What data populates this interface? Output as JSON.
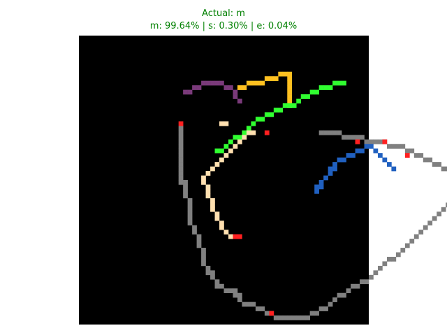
{
  "chart_data": {
    "type": "heatmap",
    "title": "Actual: m",
    "subtitle": "m: 99.64% | s: 0.30% | e: 0.04%",
    "actual_label": "m",
    "predictions": [
      {
        "label": "m",
        "percent": 99.64
      },
      {
        "label": "s",
        "percent": 0.3
      },
      {
        "label": "e",
        "percent": 0.04
      }
    ],
    "grid": {
      "rows": 64,
      "cols": 64,
      "background": "#000000"
    },
    "axes": "off",
    "colors": {
      "gray": "#808080",
      "purple": "#7a3a7a",
      "gold": "#ffc020",
      "green": "#30ff30",
      "blue": "#2060c0",
      "cream": "#ffe0b0",
      "red": "#ff2020",
      "white": "#ffffff",
      "title": "#008000"
    },
    "strokes": [
      {
        "color": "gray",
        "cells": [
          [
            22,
            20
          ],
          [
            22,
            21
          ],
          [
            22,
            22
          ],
          [
            22,
            23
          ],
          [
            22,
            24
          ],
          [
            22,
            25
          ],
          [
            22,
            26
          ],
          [
            22,
            27
          ],
          [
            22,
            28
          ],
          [
            22,
            29
          ],
          [
            22,
            30
          ],
          [
            22,
            31
          ],
          [
            22,
            32
          ],
          [
            23,
            32
          ],
          [
            23,
            33
          ],
          [
            23,
            34
          ],
          [
            23,
            35
          ],
          [
            24,
            36
          ],
          [
            24,
            37
          ],
          [
            24,
            38
          ],
          [
            24,
            39
          ],
          [
            24,
            40
          ],
          [
            24,
            41
          ],
          [
            25,
            42
          ],
          [
            25,
            43
          ],
          [
            26,
            44
          ],
          [
            26,
            45
          ],
          [
            26,
            46
          ],
          [
            27,
            47
          ],
          [
            27,
            48
          ],
          [
            27,
            49
          ],
          [
            27,
            50
          ],
          [
            28,
            51
          ],
          [
            28,
            52
          ],
          [
            29,
            52
          ],
          [
            29,
            53
          ],
          [
            30,
            54
          ],
          [
            30,
            55
          ],
          [
            31,
            55
          ],
          [
            32,
            56
          ],
          [
            33,
            56
          ],
          [
            34,
            56
          ],
          [
            34,
            57
          ],
          [
            35,
            57
          ],
          [
            35,
            58
          ],
          [
            36,
            59
          ],
          [
            37,
            59
          ],
          [
            38,
            59
          ],
          [
            39,
            60
          ],
          [
            40,
            60
          ],
          [
            41,
            61
          ],
          [
            42,
            61
          ],
          [
            43,
            62
          ],
          [
            44,
            62
          ],
          [
            45,
            62
          ],
          [
            46,
            62
          ],
          [
            47,
            62
          ],
          [
            48,
            62
          ],
          [
            49,
            62
          ],
          [
            50,
            62
          ],
          [
            51,
            61
          ],
          [
            52,
            61
          ],
          [
            53,
            60
          ],
          [
            54,
            60
          ],
          [
            55,
            59
          ],
          [
            56,
            58
          ],
          [
            57,
            57
          ],
          [
            58,
            57
          ],
          [
            59,
            56
          ],
          [
            60,
            55
          ],
          [
            61,
            55
          ],
          [
            62,
            54
          ],
          [
            63,
            54
          ],
          [
            64,
            53
          ],
          [
            65,
            52
          ],
          [
            66,
            51
          ],
          [
            67,
            50
          ],
          [
            68,
            49
          ],
          [
            69,
            49
          ],
          [
            70,
            48
          ],
          [
            71,
            47
          ],
          [
            72,
            46
          ],
          [
            73,
            45
          ],
          [
            74,
            44
          ],
          [
            75,
            43
          ],
          [
            76,
            42
          ],
          [
            77,
            41
          ],
          [
            78,
            40
          ],
          [
            79,
            39
          ],
          [
            80,
            38
          ],
          [
            81,
            37
          ],
          [
            82,
            36
          ],
          [
            83,
            35
          ],
          [
            84,
            34
          ],
          [
            85,
            33
          ],
          [
            84,
            32
          ],
          [
            83,
            31
          ],
          [
            82,
            30
          ],
          [
            81,
            29
          ],
          [
            80,
            29
          ],
          [
            79,
            28
          ],
          [
            78,
            28
          ],
          [
            77,
            27
          ],
          [
            76,
            27
          ],
          [
            75,
            26
          ],
          [
            74,
            26
          ],
          [
            73,
            25
          ],
          [
            72,
            25
          ],
          [
            71,
            24
          ],
          [
            70,
            24
          ],
          [
            69,
            24
          ],
          [
            68,
            24
          ],
          [
            67,
            23
          ],
          [
            66,
            23
          ],
          [
            65,
            23
          ],
          [
            64,
            23
          ],
          [
            63,
            23
          ],
          [
            62,
            22
          ],
          [
            61,
            22
          ],
          [
            60,
            22
          ],
          [
            59,
            22
          ],
          [
            58,
            22
          ],
          [
            57,
            21
          ],
          [
            56,
            21
          ],
          [
            55,
            21
          ],
          [
            54,
            21
          ],
          [
            53,
            21
          ]
        ]
      },
      {
        "color": "purple",
        "cells": [
          [
            23,
            12
          ],
          [
            24,
            12
          ],
          [
            25,
            11
          ],
          [
            26,
            11
          ],
          [
            27,
            10
          ],
          [
            28,
            10
          ],
          [
            29,
            10
          ],
          [
            30,
            10
          ],
          [
            31,
            10
          ],
          [
            32,
            11
          ],
          [
            33,
            11
          ],
          [
            34,
            12
          ],
          [
            34,
            13
          ],
          [
            35,
            14
          ]
        ]
      },
      {
        "color": "gold",
        "cells": [
          [
            35,
            11
          ],
          [
            36,
            11
          ],
          [
            37,
            10
          ],
          [
            38,
            10
          ],
          [
            39,
            10
          ],
          [
            40,
            10
          ],
          [
            41,
            9
          ],
          [
            42,
            9
          ],
          [
            43,
            9
          ],
          [
            44,
            8
          ],
          [
            45,
            8
          ],
          [
            46,
            8
          ],
          [
            46,
            9
          ],
          [
            46,
            10
          ],
          [
            46,
            11
          ],
          [
            46,
            12
          ],
          [
            46,
            13
          ],
          [
            46,
            14
          ],
          [
            46,
            15
          ]
        ]
      },
      {
        "color": "green",
        "cells": [
          [
            30,
            25
          ],
          [
            31,
            25
          ],
          [
            32,
            24
          ],
          [
            33,
            23
          ],
          [
            34,
            22
          ],
          [
            35,
            22
          ],
          [
            36,
            21
          ],
          [
            37,
            20
          ],
          [
            38,
            19
          ],
          [
            39,
            18
          ],
          [
            40,
            18
          ],
          [
            41,
            17
          ],
          [
            42,
            17
          ],
          [
            43,
            16
          ],
          [
            44,
            16
          ],
          [
            45,
            15
          ],
          [
            46,
            15
          ],
          [
            47,
            15
          ],
          [
            48,
            14
          ],
          [
            49,
            13
          ],
          [
            50,
            13
          ],
          [
            51,
            12
          ],
          [
            52,
            12
          ],
          [
            53,
            11
          ],
          [
            54,
            11
          ],
          [
            55,
            11
          ],
          [
            56,
            10
          ],
          [
            57,
            10
          ],
          [
            58,
            10
          ]
        ]
      },
      {
        "color": "blue",
        "cells": [
          [
            52,
            34
          ],
          [
            52,
            33
          ],
          [
            53,
            33
          ],
          [
            53,
            32
          ],
          [
            54,
            31
          ],
          [
            55,
            30
          ],
          [
            55,
            29
          ],
          [
            56,
            29
          ],
          [
            56,
            28
          ],
          [
            57,
            27
          ],
          [
            58,
            27
          ],
          [
            59,
            26
          ],
          [
            60,
            26
          ],
          [
            61,
            25
          ],
          [
            62,
            25
          ],
          [
            63,
            24
          ],
          [
            64,
            24
          ],
          [
            65,
            25
          ],
          [
            66,
            26
          ],
          [
            67,
            27
          ],
          [
            68,
            28
          ],
          [
            69,
            29
          ]
        ]
      },
      {
        "color": "cream",
        "cells": [
          [
            38,
            21
          ],
          [
            37,
            21
          ],
          [
            36,
            22
          ],
          [
            35,
            23
          ],
          [
            34,
            24
          ],
          [
            33,
            25
          ],
          [
            32,
            26
          ],
          [
            31,
            27
          ],
          [
            30,
            28
          ],
          [
            29,
            29
          ],
          [
            28,
            30
          ],
          [
            27,
            31
          ],
          [
            27,
            32
          ],
          [
            28,
            33
          ],
          [
            28,
            34
          ],
          [
            28,
            35
          ],
          [
            29,
            36
          ],
          [
            29,
            37
          ],
          [
            29,
            38
          ],
          [
            30,
            39
          ],
          [
            30,
            40
          ],
          [
            31,
            41
          ],
          [
            31,
            42
          ],
          [
            32,
            43
          ],
          [
            33,
            44
          ],
          [
            31,
            19
          ],
          [
            32,
            19
          ]
        ]
      },
      {
        "color": "red",
        "cells": [
          [
            34,
            44
          ],
          [
            35,
            44
          ],
          [
            42,
            61
          ],
          [
            22,
            19
          ],
          [
            41,
            21
          ],
          [
            67,
            23
          ],
          [
            72,
            26
          ],
          [
            61,
            23
          ]
        ]
      }
    ]
  }
}
